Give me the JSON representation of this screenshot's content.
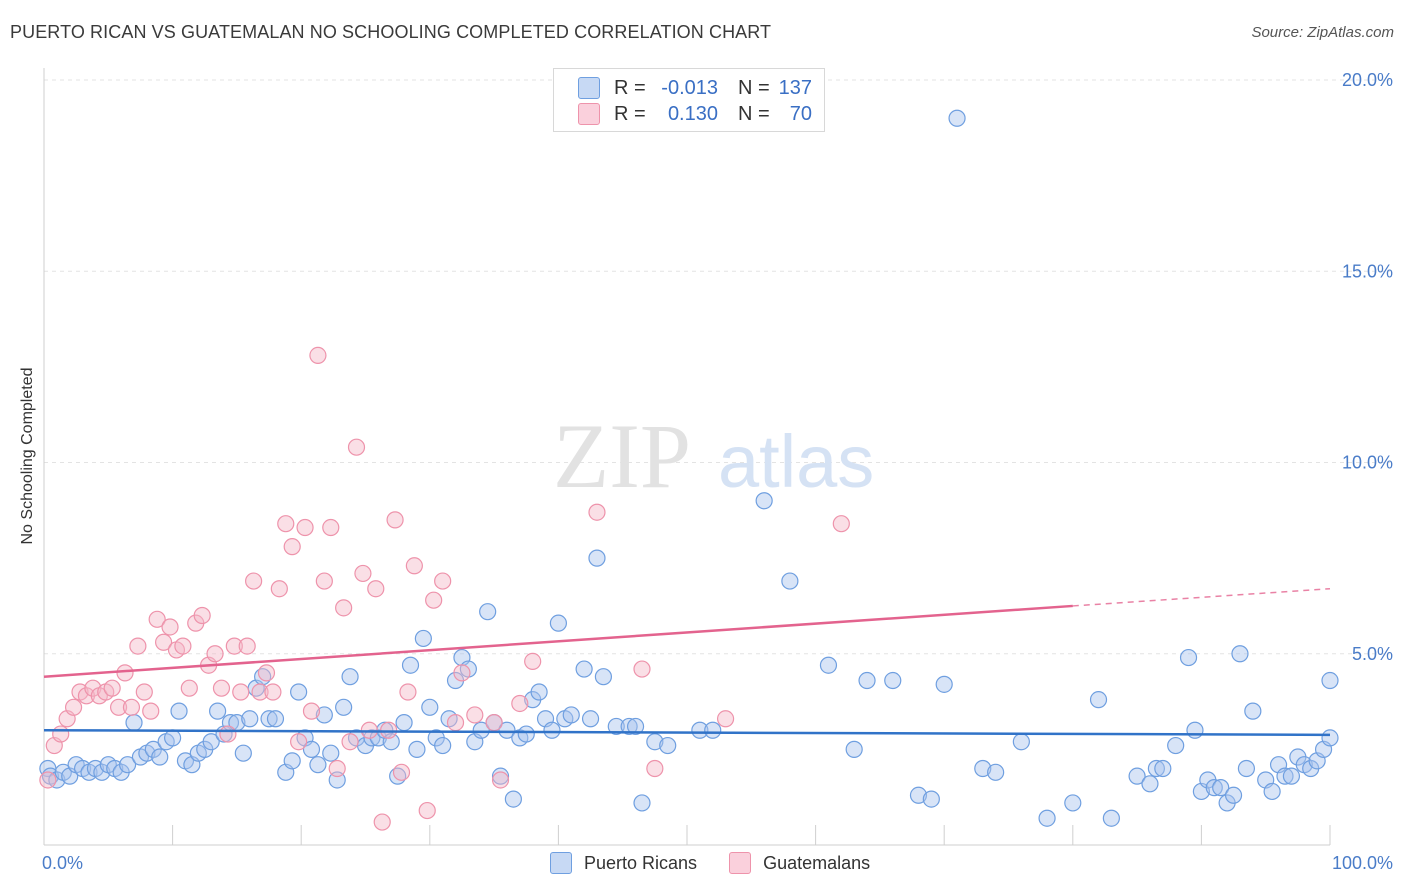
{
  "header": {
    "title": "PUERTO RICAN VS GUATEMALAN NO SCHOOLING COMPLETED CORRELATION CHART",
    "source": "Source: ZipAtlas.com"
  },
  "watermark": {
    "zip": "ZIP",
    "atlas": "atlas"
  },
  "legend": {
    "rows": [
      {
        "r_label": "R =",
        "r_value": "-0.013",
        "n_label": "N =",
        "n_value": "137",
        "color": "#a9c4ee"
      },
      {
        "r_label": "R =",
        "r_value": "0.130",
        "n_label": "N =",
        "n_value": "70",
        "color": "#f4b8c8"
      }
    ]
  },
  "bottom_legend": {
    "items": [
      {
        "label": "Puerto Ricans",
        "color": "#a9c4ee"
      },
      {
        "label": "Guatemalans",
        "color": "#f4b8c8"
      }
    ]
  },
  "chart_data": {
    "type": "scatter",
    "ylabel": "No Schooling Completed",
    "xlabel": "",
    "xlim": [
      0,
      100
    ],
    "ylim": [
      0,
      20
    ],
    "x_tick_labels": [
      {
        "value": 0,
        "label": "0.0%"
      },
      {
        "value": 100,
        "label": "100.0%"
      }
    ],
    "y_tick_labels": [
      {
        "value": 5,
        "label": "5.0%"
      },
      {
        "value": 10,
        "label": "10.0%"
      },
      {
        "value": 15,
        "label": "15.0%"
      },
      {
        "value": 20,
        "label": "20.0%"
      }
    ],
    "grid": true,
    "series": [
      {
        "name": "Puerto Ricans",
        "color": "#6f9fe0",
        "fill": "#a9c4ee",
        "trend": {
          "x0": 0,
          "y0": 3.0,
          "x1": 100,
          "y1": 2.88,
          "color": "#3173c8"
        },
        "points": [
          [
            0.3,
            2.0
          ],
          [
            0.5,
            1.8
          ],
          [
            1.0,
            1.7
          ],
          [
            1.5,
            1.9
          ],
          [
            2.0,
            1.8
          ],
          [
            2.5,
            2.1
          ],
          [
            3.0,
            2.0
          ],
          [
            3.5,
            1.9
          ],
          [
            4.0,
            2.0
          ],
          [
            4.5,
            1.9
          ],
          [
            5.0,
            2.1
          ],
          [
            5.5,
            2.0
          ],
          [
            6.0,
            1.9
          ],
          [
            6.5,
            2.1
          ],
          [
            7.0,
            3.2
          ],
          [
            7.5,
            2.3
          ],
          [
            8.0,
            2.4
          ],
          [
            8.5,
            2.5
          ],
          [
            9.0,
            2.3
          ],
          [
            9.5,
            2.7
          ],
          [
            10.0,
            2.8
          ],
          [
            10.5,
            3.5
          ],
          [
            11.0,
            2.2
          ],
          [
            11.5,
            2.1
          ],
          [
            12.0,
            2.4
          ],
          [
            12.5,
            2.5
          ],
          [
            13.0,
            2.7
          ],
          [
            13.5,
            3.5
          ],
          [
            14.0,
            2.9
          ],
          [
            14.5,
            3.2
          ],
          [
            15.0,
            3.2
          ],
          [
            15.5,
            2.4
          ],
          [
            16.0,
            3.3
          ],
          [
            16.5,
            4.1
          ],
          [
            17.0,
            4.4
          ],
          [
            17.5,
            3.3
          ],
          [
            18.0,
            3.3
          ],
          [
            18.8,
            1.9
          ],
          [
            19.3,
            2.2
          ],
          [
            19.8,
            4.0
          ],
          [
            20.3,
            2.8
          ],
          [
            20.8,
            2.5
          ],
          [
            21.3,
            2.1
          ],
          [
            21.8,
            3.4
          ],
          [
            22.3,
            2.4
          ],
          [
            22.8,
            1.7
          ],
          [
            23.3,
            3.6
          ],
          [
            23.8,
            4.4
          ],
          [
            24.3,
            2.8
          ],
          [
            25.0,
            2.6
          ],
          [
            25.5,
            2.8
          ],
          [
            26.0,
            2.8
          ],
          [
            26.5,
            3.0
          ],
          [
            27.0,
            2.7
          ],
          [
            27.5,
            1.8
          ],
          [
            28.0,
            3.2
          ],
          [
            28.5,
            4.7
          ],
          [
            29.0,
            2.5
          ],
          [
            29.5,
            5.4
          ],
          [
            30.0,
            3.6
          ],
          [
            30.5,
            2.8
          ],
          [
            31.0,
            2.6
          ],
          [
            31.5,
            3.3
          ],
          [
            32.0,
            4.3
          ],
          [
            32.5,
            4.9
          ],
          [
            33.0,
            4.6
          ],
          [
            33.5,
            2.7
          ],
          [
            34.0,
            3.0
          ],
          [
            34.5,
            6.1
          ],
          [
            35.0,
            3.2
          ],
          [
            35.5,
            1.8
          ],
          [
            36.0,
            3.0
          ],
          [
            36.5,
            1.2
          ],
          [
            37.0,
            2.8
          ],
          [
            37.5,
            2.9
          ],
          [
            38.0,
            3.8
          ],
          [
            38.5,
            4.0
          ],
          [
            39.0,
            3.3
          ],
          [
            39.5,
            3.0
          ],
          [
            40.0,
            5.8
          ],
          [
            40.5,
            3.3
          ],
          [
            41.0,
            3.4
          ],
          [
            42.0,
            4.6
          ],
          [
            42.5,
            3.3
          ],
          [
            43.0,
            7.5
          ],
          [
            43.5,
            4.4
          ],
          [
            44.5,
            3.1
          ],
          [
            45.5,
            3.1
          ],
          [
            46.0,
            3.1
          ],
          [
            46.5,
            1.1
          ],
          [
            47.5,
            2.7
          ],
          [
            48.5,
            2.6
          ],
          [
            51.0,
            3.0
          ],
          [
            52.0,
            3.0
          ],
          [
            56.0,
            9.0
          ],
          [
            58.0,
            6.9
          ],
          [
            61.0,
            4.7
          ],
          [
            63.0,
            2.5
          ],
          [
            64.0,
            4.3
          ],
          [
            66.0,
            4.3
          ],
          [
            68.0,
            1.3
          ],
          [
            69.0,
            1.2
          ],
          [
            70.0,
            4.2
          ],
          [
            71.0,
            19.0
          ],
          [
            73.0,
            2.0
          ],
          [
            74.0,
            1.9
          ],
          [
            76.0,
            2.7
          ],
          [
            78.0,
            0.7
          ],
          [
            80.0,
            1.1
          ],
          [
            82.0,
            3.8
          ],
          [
            83.0,
            0.7
          ],
          [
            85.0,
            1.8
          ],
          [
            86.0,
            1.6
          ],
          [
            86.5,
            2.0
          ],
          [
            87.0,
            2.0
          ],
          [
            88.0,
            2.6
          ],
          [
            89.0,
            4.9
          ],
          [
            89.5,
            3.0
          ],
          [
            90.0,
            1.4
          ],
          [
            90.5,
            1.7
          ],
          [
            91.0,
            1.5
          ],
          [
            91.5,
            1.5
          ],
          [
            92.0,
            1.1
          ],
          [
            92.5,
            1.3
          ],
          [
            93.0,
            5.0
          ],
          [
            93.5,
            2.0
          ],
          [
            94.0,
            3.5
          ],
          [
            95.0,
            1.7
          ],
          [
            95.5,
            1.4
          ],
          [
            96.0,
            2.1
          ],
          [
            96.5,
            1.8
          ],
          [
            97.0,
            1.8
          ],
          [
            97.5,
            2.3
          ],
          [
            98.0,
            2.1
          ],
          [
            98.5,
            2.0
          ],
          [
            99.0,
            2.2
          ],
          [
            99.5,
            2.5
          ],
          [
            100.0,
            2.8
          ],
          [
            100.0,
            4.3
          ]
        ]
      },
      {
        "name": "Guatemalans",
        "color": "#ee93ab",
        "fill": "#f4b8c8",
        "trend": {
          "x0": 0,
          "y0": 4.4,
          "x1": 80,
          "y1": 6.25,
          "dash_to_x": 100,
          "dash_to_y": 6.7,
          "color": "#e3638e"
        },
        "points": [
          [
            0.3,
            1.7
          ],
          [
            0.8,
            2.6
          ],
          [
            1.3,
            2.9
          ],
          [
            1.8,
            3.3
          ],
          [
            2.3,
            3.6
          ],
          [
            2.8,
            4.0
          ],
          [
            3.3,
            3.9
          ],
          [
            3.8,
            4.1
          ],
          [
            4.3,
            3.9
          ],
          [
            4.8,
            4.0
          ],
          [
            5.3,
            4.1
          ],
          [
            5.8,
            3.6
          ],
          [
            6.3,
            4.5
          ],
          [
            6.8,
            3.6
          ],
          [
            7.3,
            5.2
          ],
          [
            7.8,
            4.0
          ],
          [
            8.3,
            3.5
          ],
          [
            8.8,
            5.9
          ],
          [
            9.3,
            5.3
          ],
          [
            9.8,
            5.7
          ],
          [
            10.3,
            5.1
          ],
          [
            10.8,
            5.2
          ],
          [
            11.3,
            4.1
          ],
          [
            11.8,
            5.8
          ],
          [
            12.3,
            6.0
          ],
          [
            12.8,
            4.7
          ],
          [
            13.3,
            5.0
          ],
          [
            13.8,
            4.1
          ],
          [
            14.3,
            2.9
          ],
          [
            14.8,
            5.2
          ],
          [
            15.3,
            4.0
          ],
          [
            15.8,
            5.2
          ],
          [
            16.3,
            6.9
          ],
          [
            16.8,
            4.0
          ],
          [
            17.3,
            4.5
          ],
          [
            17.8,
            4.0
          ],
          [
            18.3,
            6.7
          ],
          [
            18.8,
            8.4
          ],
          [
            19.3,
            7.8
          ],
          [
            19.8,
            2.7
          ],
          [
            20.3,
            8.3
          ],
          [
            20.8,
            3.5
          ],
          [
            21.3,
            12.8
          ],
          [
            21.8,
            6.9
          ],
          [
            22.3,
            8.3
          ],
          [
            22.8,
            2.0
          ],
          [
            23.3,
            6.2
          ],
          [
            23.8,
            2.7
          ],
          [
            24.3,
            10.4
          ],
          [
            24.8,
            7.1
          ],
          [
            25.3,
            3.0
          ],
          [
            25.8,
            6.7
          ],
          [
            26.3,
            0.6
          ],
          [
            26.8,
            3.0
          ],
          [
            27.3,
            8.5
          ],
          [
            27.8,
            1.9
          ],
          [
            28.3,
            4.0
          ],
          [
            28.8,
            7.3
          ],
          [
            29.8,
            0.9
          ],
          [
            30.3,
            6.4
          ],
          [
            31.0,
            6.9
          ],
          [
            32.0,
            3.2
          ],
          [
            32.5,
            4.5
          ],
          [
            33.5,
            3.4
          ],
          [
            35.0,
            3.2
          ],
          [
            35.5,
            1.7
          ],
          [
            37.0,
            3.7
          ],
          [
            38.0,
            4.8
          ],
          [
            43.0,
            8.7
          ],
          [
            46.5,
            4.6
          ],
          [
            47.5,
            2.0
          ],
          [
            53.0,
            3.3
          ],
          [
            62.0,
            8.4
          ]
        ]
      }
    ]
  }
}
